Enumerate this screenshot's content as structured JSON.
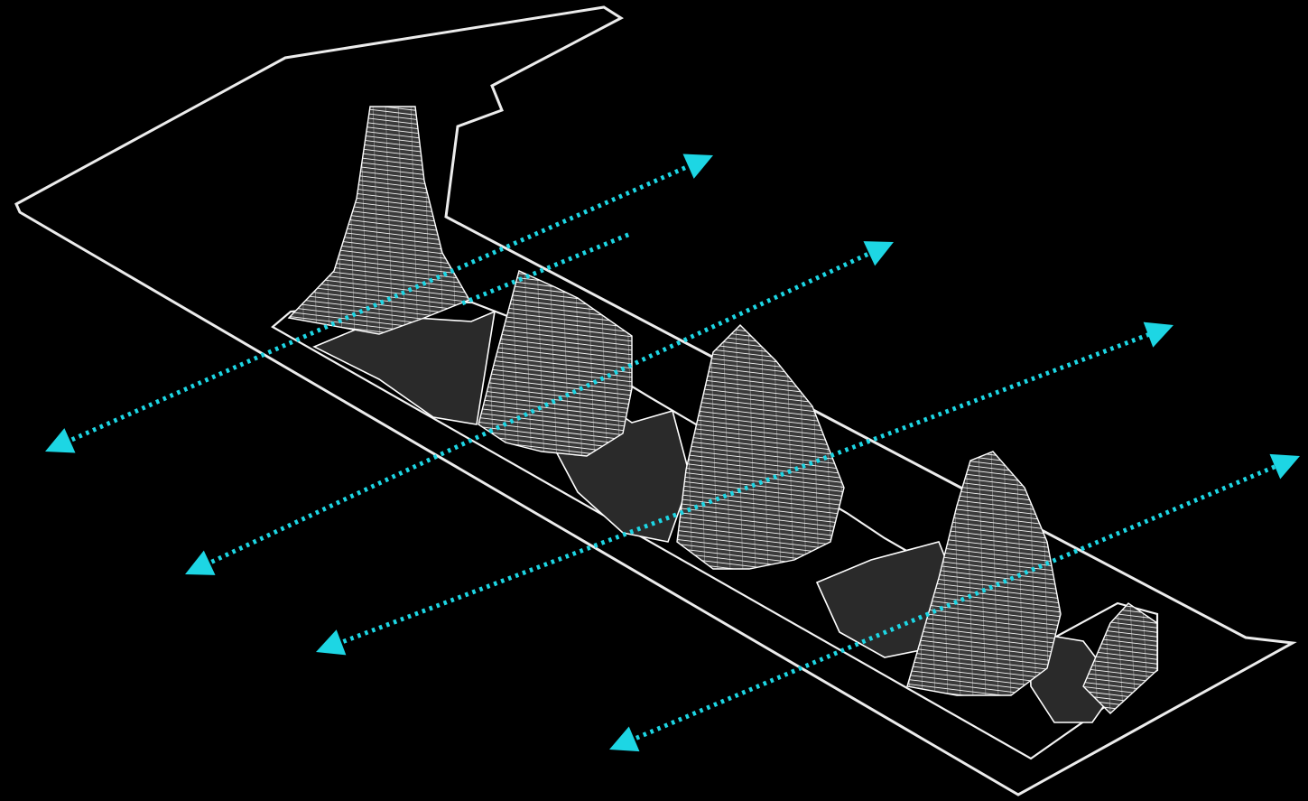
{
  "diagram": {
    "background": "#000000",
    "line_color": "#ffffff",
    "flow_color": "#1dd6e4",
    "plaza_fill_color": "#2a2a2a",
    "mass_fill_color": "#3a3a3a",
    "flow_arrow_count": 5,
    "tower_count": 5
  }
}
